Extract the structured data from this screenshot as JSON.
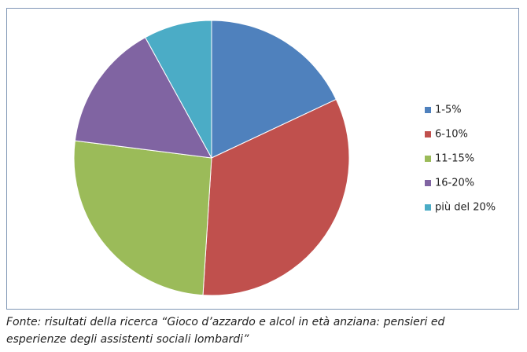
{
  "chart_data": {
    "type": "pie",
    "categories": [
      "1-5%",
      "6-10%",
      "11-15%",
      "16-20%",
      "più del 20%"
    ],
    "values": [
      18,
      33,
      26,
      15,
      8
    ],
    "colors": [
      "#4f81bd",
      "#c0504d",
      "#9bbb59",
      "#8064a2",
      "#4bacc6"
    ],
    "legend": "right"
  },
  "caption": [
    "Fonte: risultati della ricerca “Gioco d’azzardo e alcol in età anziana: pensieri ed",
    "esperienze degli assistenti sociali lombardi”"
  ]
}
